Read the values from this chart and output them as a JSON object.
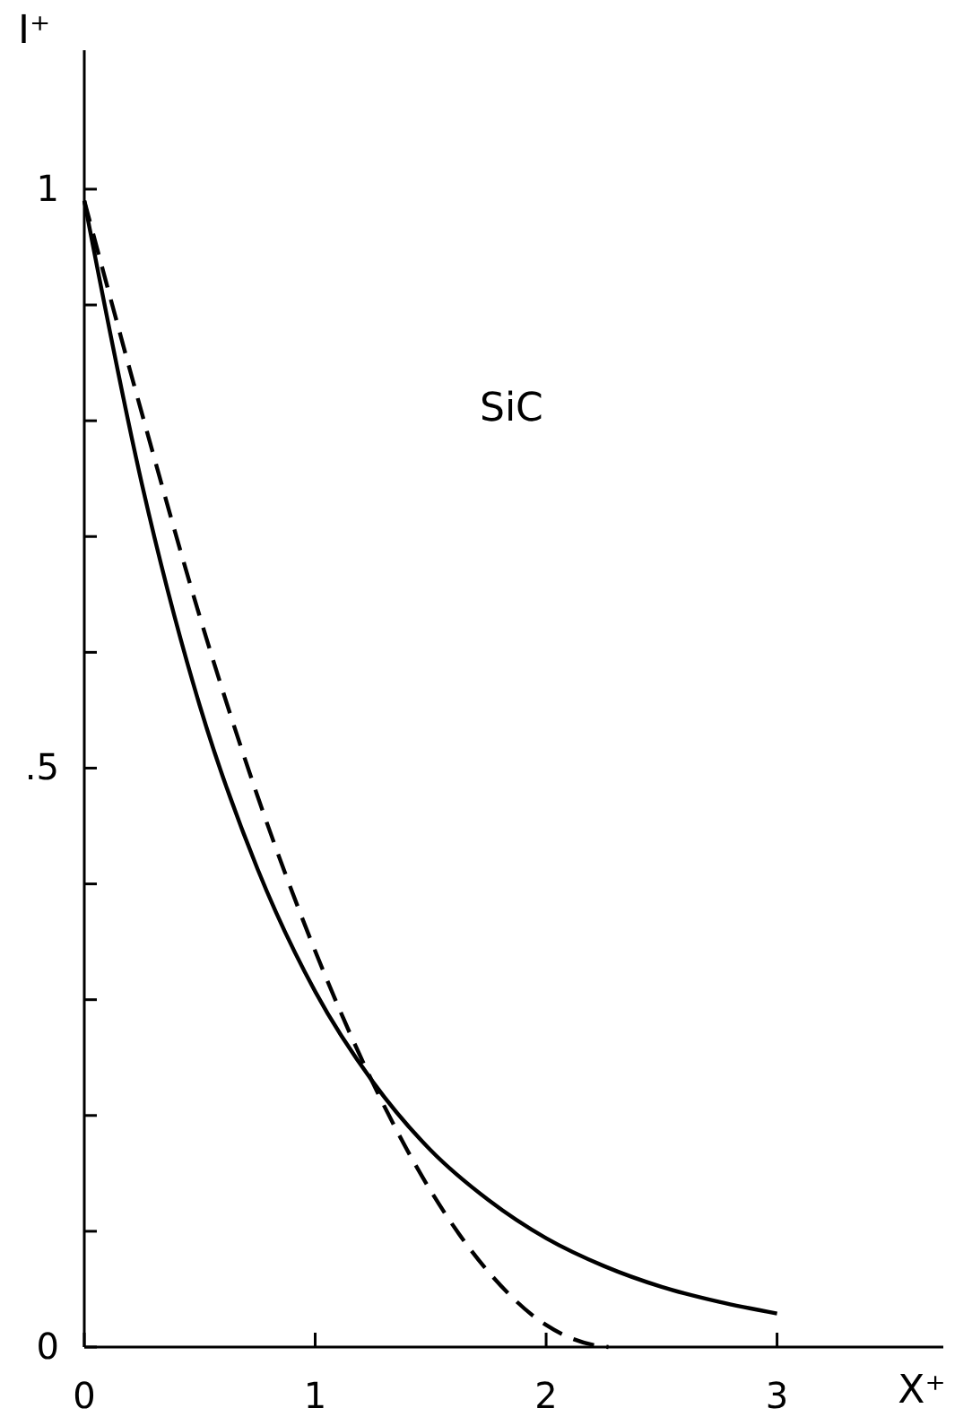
{
  "chart_data": {
    "type": "line",
    "xlabel": "X⁺",
    "ylabel": "I⁺",
    "annotations": [
      "SiC"
    ],
    "xlim": [
      0,
      3.72
    ],
    "xticks": [
      0,
      1,
      2,
      3
    ],
    "ylim": [
      0,
      1.12
    ],
    "yticks": [
      0,
      {
        "value": 0.1,
        "label": null
      },
      {
        "value": 0.2,
        "label": null
      },
      {
        "value": 0.3,
        "label": null
      },
      {
        "value": 0.4,
        "label": null
      },
      {
        "value": 0.5,
        "label": ".5"
      },
      {
        "value": 0.6,
        "label": null
      },
      {
        "value": 0.7,
        "label": null
      },
      {
        "value": 0.8,
        "label": null
      },
      {
        "value": 0.9,
        "label": null
      },
      1
    ],
    "grid": false,
    "marker": "none",
    "series": [
      {
        "color": "#000000",
        "line_style": "solid",
        "x": [
          0,
          0.25,
          0.5,
          0.75,
          1,
          1.25,
          1.5,
          1.75,
          2,
          2.25,
          2.5,
          2.75,
          3
        ],
        "values": [
          0.99,
          0.745,
          0.554,
          0.413,
          0.307,
          0.229,
          0.17,
          0.127,
          0.094,
          0.07,
          0.052,
          0.039,
          0.029
        ]
      },
      {
        "color": "#000000",
        "line_style": "dashed",
        "x": [
          0,
          0.25,
          0.5,
          0.75,
          1,
          1.25,
          1.5,
          1.75,
          2,
          2.2,
          2.27
        ],
        "values": [
          0.99,
          0.806,
          0.631,
          0.476,
          0.342,
          0.228,
          0.135,
          0.065,
          0.019,
          0.002,
          0
        ]
      }
    ]
  }
}
